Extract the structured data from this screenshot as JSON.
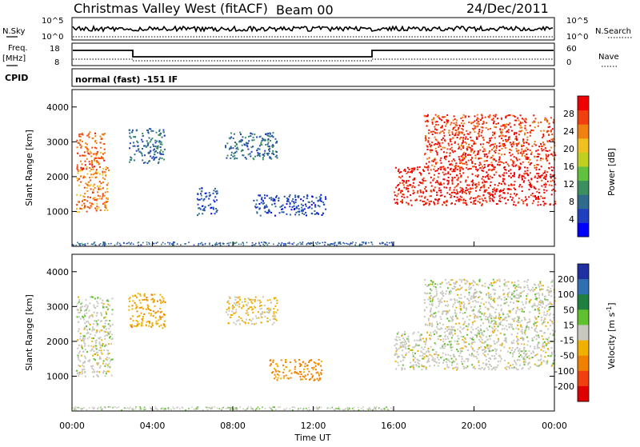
{
  "header": {
    "station": "Christmas Valley West (fitACF)",
    "beam": "Beam 00",
    "date": "24/Dec/2011"
  },
  "aux": {
    "nsky_label": "N.Sky",
    "nsky_ticks": [
      "10^5",
      "10^0"
    ],
    "nsearch_label": "N.Search",
    "nsearch_ticks": [
      "10^5",
      "10^0"
    ],
    "freq_label_1": "Freq.",
    "freq_label_2": "[MHz]",
    "freq_ticks": [
      "18",
      "8"
    ],
    "nave_label": "Nave",
    "nave_ticks": [
      "60",
      "0"
    ],
    "cpid_label": "CPID",
    "cpid_text": "normal (fast) -151 IF"
  },
  "colors": {
    "power": [
      "#0000ff",
      "#2040c0",
      "#2e6b8c",
      "#3c9060",
      "#60c040",
      "#c0d020",
      "#f0c020",
      "#f08010",
      "#f04010",
      "#f00000"
    ],
    "velocity": [
      "#2030a0",
      "#3070b0",
      "#208040",
      "#60c030",
      "#c8c8c0",
      "#f0b000",
      "#f08000",
      "#f04010",
      "#e00000"
    ]
  },
  "chart_data": [
    {
      "type": "heatmap",
      "panel": "power",
      "ylabel": "Slant Range [km]",
      "xlim": [
        "00:00",
        "24:00"
      ],
      "ylim": [
        0,
        4500
      ],
      "y_ticks": [
        1000,
        2000,
        3000,
        4000
      ],
      "colorbar": {
        "label": "Power [dB]",
        "ticks": [
          4,
          8,
          12,
          16,
          20,
          24,
          28
        ],
        "range": [
          0,
          32
        ]
      },
      "regions": [
        {
          "t0": 0.2,
          "t1": 1.8,
          "r0": 1000,
          "r1": 2300,
          "value": 24
        },
        {
          "t0": 0.2,
          "t1": 1.6,
          "r0": 2200,
          "r1": 3300,
          "value": 26
        },
        {
          "t0": 2.8,
          "t1": 4.6,
          "r0": 2400,
          "r1": 3400,
          "value": 8
        },
        {
          "t0": 6.2,
          "t1": 7.2,
          "r0": 900,
          "r1": 1700,
          "value": 6
        },
        {
          "t0": 7.6,
          "t1": 10.2,
          "r0": 2500,
          "r1": 3300,
          "value": 8
        },
        {
          "t0": 9.0,
          "t1": 12.6,
          "r0": 900,
          "r1": 1500,
          "value": 5
        },
        {
          "t0": 16.0,
          "t1": 24.0,
          "r0": 1200,
          "r1": 2300,
          "value": 30
        },
        {
          "t0": 17.5,
          "t1": 24.0,
          "r0": 2300,
          "r1": 3800,
          "value": 28
        }
      ]
    },
    {
      "type": "heatmap",
      "panel": "velocity",
      "xlabel": "Time UT",
      "ylabel": "Slant Range [km]",
      "xlim": [
        "00:00",
        "24:00"
      ],
      "ylim": [
        0,
        4500
      ],
      "y_ticks": [
        1000,
        2000,
        3000,
        4000
      ],
      "x_ticks": [
        "00:00",
        "04:00",
        "08:00",
        "12:00",
        "16:00",
        "20:00",
        "00:00"
      ],
      "colorbar": {
        "label": "Velocity [m s",
        "label_sup": "-1",
        "label_end": "]",
        "ticks": [
          200,
          100,
          50,
          15,
          -15,
          -50,
          -100,
          -200
        ]
      },
      "regions": [
        {
          "t0": 0.2,
          "t1": 2.0,
          "r0": 1000,
          "r1": 3300,
          "value": 0
        },
        {
          "t0": 2.8,
          "t1": 4.6,
          "r0": 2400,
          "r1": 3400,
          "value": -40
        },
        {
          "t0": 7.6,
          "t1": 10.2,
          "r0": 2500,
          "r1": 3300,
          "value": -20
        },
        {
          "t0": 9.8,
          "t1": 12.4,
          "r0": 900,
          "r1": 1500,
          "value": -60
        },
        {
          "t0": 16.0,
          "t1": 24.0,
          "r0": 1200,
          "r1": 2300,
          "value": 0
        },
        {
          "t0": 17.5,
          "t1": 24.0,
          "r0": 2300,
          "r1": 3800,
          "value": 0
        }
      ]
    }
  ]
}
